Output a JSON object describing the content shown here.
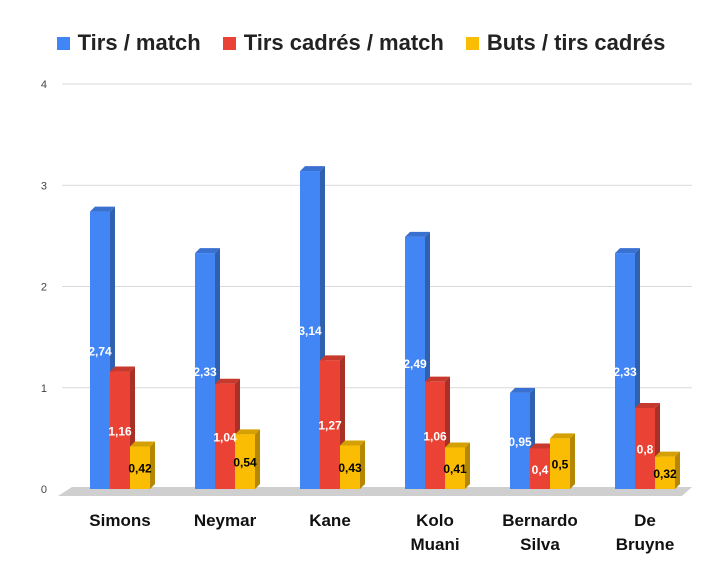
{
  "chart_data": {
    "type": "bar",
    "title": "",
    "xlabel": "",
    "ylabel": "",
    "ylim": [
      0,
      4
    ],
    "yticks": [
      "0",
      "1",
      "2",
      "3",
      "4"
    ],
    "grid": true,
    "legend_position": "top",
    "style": "3d",
    "categories": [
      [
        "Simons"
      ],
      [
        "Neymar"
      ],
      [
        "Kane"
      ],
      [
        "Kolo",
        "Muani"
      ],
      [
        "Bernardo",
        "Silva"
      ],
      [
        "De",
        "Bruyne"
      ]
    ],
    "series": [
      {
        "name": "Tirs / match",
        "color": "#4285f4",
        "values": [
          2.74,
          2.33,
          3.14,
          2.49,
          0.95,
          2.33
        ],
        "labels": [
          "2,74",
          "2,33",
          "3,14",
          "2,49",
          "0,95",
          "2,33"
        ],
        "label_color": "#ffffff"
      },
      {
        "name": "Tirs cadrés / match",
        "color": "#ea4335",
        "values": [
          1.16,
          1.04,
          1.27,
          1.06,
          0.4,
          0.8
        ],
        "labels": [
          "1,16",
          "1,04",
          "1,27",
          "1,06",
          "0,4",
          "0,8"
        ],
        "label_color": "#ffffff"
      },
      {
        "name": "Buts / tirs cadrés",
        "color": "#fbbc04",
        "values": [
          0.42,
          0.54,
          0.43,
          0.41,
          0.5,
          0.32
        ],
        "labels": [
          "0,42",
          "0,54",
          "0,43",
          "0,41",
          "0,5",
          "0,32"
        ],
        "label_color": "#000000"
      }
    ]
  }
}
